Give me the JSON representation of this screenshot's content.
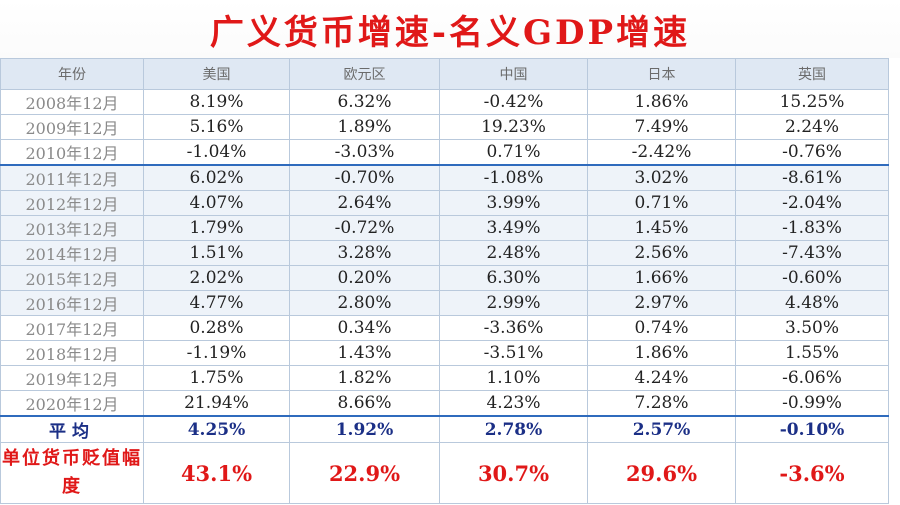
{
  "title": "广义货币增速-名义GDP增速",
  "headers": [
    "年份",
    "美国",
    "欧元区",
    "中国",
    "日本",
    "英国"
  ],
  "rows": [
    {
      "year": "2008年12月",
      "values": [
        "8.19%",
        "6.32%",
        "-0.42%",
        "1.86%",
        "15.25%"
      ]
    },
    {
      "year": "2009年12月",
      "values": [
        "5.16%",
        "1.89%",
        "19.23%",
        "7.49%",
        "2.24%"
      ]
    },
    {
      "year": "2010年12月",
      "values": [
        "-1.04%",
        "-3.03%",
        "0.71%",
        "-2.42%",
        "-0.76%"
      ]
    },
    {
      "year": "2011年12月",
      "values": [
        "6.02%",
        "-0.70%",
        "-1.08%",
        "3.02%",
        "-8.61%"
      ]
    },
    {
      "year": "2012年12月",
      "values": [
        "4.07%",
        "2.64%",
        "3.99%",
        "0.71%",
        "-2.04%"
      ]
    },
    {
      "year": "2013年12月",
      "values": [
        "1.79%",
        "-0.72%",
        "3.49%",
        "1.45%",
        "-1.83%"
      ]
    },
    {
      "year": "2014年12月",
      "values": [
        "1.51%",
        "3.28%",
        "2.48%",
        "2.56%",
        "-7.43%"
      ]
    },
    {
      "year": "2015年12月",
      "values": [
        "2.02%",
        "0.20%",
        "6.30%",
        "1.66%",
        "-0.60%"
      ]
    },
    {
      "year": "2016年12月",
      "values": [
        "4.77%",
        "2.80%",
        "2.99%",
        "2.97%",
        "4.48%"
      ]
    },
    {
      "year": "2017年12月",
      "values": [
        "0.28%",
        "0.34%",
        "-3.36%",
        "0.74%",
        "3.50%"
      ]
    },
    {
      "year": "2018年12月",
      "values": [
        "-1.19%",
        "1.43%",
        "-3.51%",
        "1.86%",
        "1.55%"
      ]
    },
    {
      "year": "2019年12月",
      "values": [
        "1.75%",
        "1.82%",
        "1.10%",
        "4.24%",
        "-6.06%"
      ]
    },
    {
      "year": "2020年12月",
      "values": [
        "21.94%",
        "8.66%",
        "4.23%",
        "7.28%",
        "-0.99%"
      ]
    }
  ],
  "average": {
    "label": "平均",
    "values": [
      "4.25%",
      "1.92%",
      "2.78%",
      "2.57%",
      "-0.10%"
    ]
  },
  "depreciation": {
    "label": "单位货币贬值幅度",
    "values": [
      "43.1%",
      "22.9%",
      "30.7%",
      "29.6%",
      "-3.6%"
    ]
  },
  "colors": {
    "title": "#e01818",
    "header_bg": "#dfe8f3",
    "band_bg": "#eef3f9",
    "average_text": "#1b2f86",
    "depreciation_text": "#e01818",
    "separator": "#2f6bbd"
  }
}
